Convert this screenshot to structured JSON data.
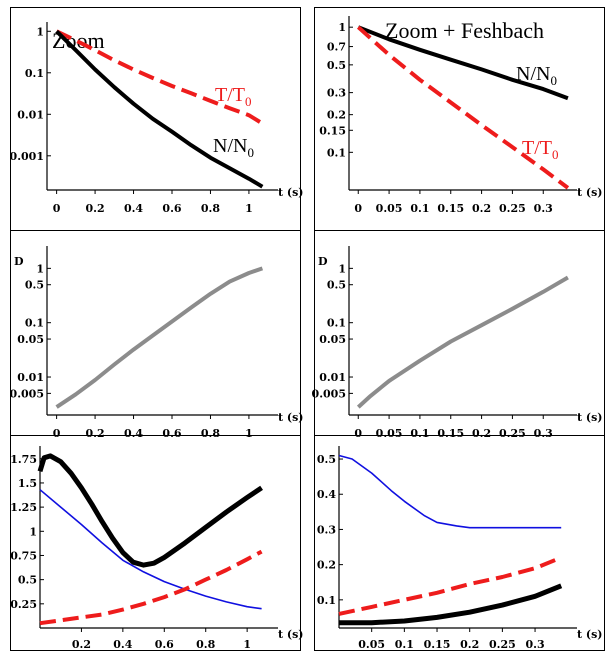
{
  "chart_data": [
    {
      "type": "line",
      "title": "Zoom",
      "log_y": true,
      "xlabel": "t (s)",
      "ylabel": "",
      "xlim": [
        -0.05,
        1.12
      ],
      "ylim": [
        0.00015,
        1.2
      ],
      "xticks": [
        "0",
        "0.2",
        "0.4",
        "0.6",
        "0.8",
        "1"
      ],
      "yticks": [
        {
          "v": 1,
          "t": "1"
        },
        {
          "v": 0.1,
          "t": "0.1"
        },
        {
          "v": 0.01,
          "t": "0.01"
        },
        {
          "v": 0.001,
          "t": "0.001"
        }
      ],
      "series": [
        {
          "name": "T/T0",
          "name_main": "T/T",
          "name_sub": "0",
          "color": "#ee1c1c",
          "style": "dashed",
          "width": 4,
          "x": [
            0,
            0.1,
            0.2,
            0.3,
            0.4,
            0.5,
            0.6,
            0.7,
            0.8,
            0.9,
            1.0,
            1.07
          ],
          "y": [
            1,
            0.6,
            0.35,
            0.2,
            0.12,
            0.075,
            0.048,
            0.032,
            0.021,
            0.014,
            0.0095,
            0.006
          ]
        },
        {
          "name": "N/N0",
          "name_main": "N/N",
          "name_sub": "0",
          "color": "#000000",
          "style": "solid",
          "width": 4,
          "x": [
            0,
            0.1,
            0.2,
            0.3,
            0.4,
            0.5,
            0.6,
            0.7,
            0.8,
            0.9,
            1.0,
            1.07
          ],
          "y": [
            1,
            0.35,
            0.12,
            0.045,
            0.018,
            0.0078,
            0.0038,
            0.0018,
            0.0009,
            0.0005,
            0.00028,
            0.00018
          ]
        }
      ]
    },
    {
      "type": "line",
      "title": "Zoom + Feshbach",
      "log_y": true,
      "xlabel": "t (s)",
      "ylabel": "",
      "xlim": [
        -0.015,
        0.345
      ],
      "ylim": [
        0.05,
        1.1
      ],
      "xticks": [
        "0",
        "0.05",
        "0.1",
        "0.15",
        "0.2",
        "0.25",
        "0.3"
      ],
      "yticks": [
        {
          "v": 1,
          "t": "1"
        },
        {
          "v": 0.7,
          "t": "0.7"
        },
        {
          "v": 0.5,
          "t": "0.5"
        },
        {
          "v": 0.3,
          "t": "0.3"
        },
        {
          "v": 0.2,
          "t": "0.2"
        },
        {
          "v": 0.15,
          "t": "0.15"
        },
        {
          "v": 0.1,
          "t": "0.1"
        }
      ],
      "series": [
        {
          "name": "N/N0",
          "name_main": "N/N",
          "name_sub": "0",
          "color": "#000000",
          "style": "solid",
          "width": 4,
          "x": [
            0,
            0.05,
            0.1,
            0.15,
            0.2,
            0.25,
            0.3,
            0.34
          ],
          "y": [
            1,
            0.8,
            0.66,
            0.55,
            0.46,
            0.38,
            0.32,
            0.27
          ]
        },
        {
          "name": "T/T0",
          "name_main": "T/T",
          "name_sub": "0",
          "color": "#ee1c1c",
          "style": "dashed",
          "width": 4,
          "x": [
            0,
            0.05,
            0.1,
            0.15,
            0.2,
            0.25,
            0.3,
            0.34
          ],
          "y": [
            1,
            0.6,
            0.38,
            0.25,
            0.165,
            0.11,
            0.073,
            0.052
          ]
        }
      ]
    },
    {
      "type": "line",
      "title": "",
      "log_y": true,
      "xlabel": "t (s)",
      "ylabel": "D",
      "xlim": [
        -0.05,
        1.12
      ],
      "ylim": [
        0.002,
        2.0
      ],
      "xticks": [
        "0",
        "0.2",
        "0.4",
        "0.6",
        "0.8",
        "1"
      ],
      "yticks": [
        {
          "v": 1,
          "t": "1"
        },
        {
          "v": 0.5,
          "t": "0.5"
        },
        {
          "v": 0.1,
          "t": "0.1"
        },
        {
          "v": 0.05,
          "t": "0.05"
        },
        {
          "v": 0.01,
          "t": "0.01"
        },
        {
          "v": 0.005,
          "t": "0.005"
        }
      ],
      "series": [
        {
          "name": "",
          "color": "#8c8c8c",
          "style": "solid",
          "width": 4,
          "x": [
            0,
            0.1,
            0.2,
            0.3,
            0.4,
            0.5,
            0.6,
            0.7,
            0.8,
            0.9,
            1.0,
            1.07
          ],
          "y": [
            0.0028,
            0.0048,
            0.0088,
            0.017,
            0.032,
            0.058,
            0.105,
            0.19,
            0.34,
            0.57,
            0.82,
            1.0
          ]
        }
      ]
    },
    {
      "type": "line",
      "title": "",
      "log_y": true,
      "xlabel": "t (s)",
      "ylabel": "D",
      "xlim": [
        -0.015,
        0.345
      ],
      "ylim": [
        0.002,
        2.0
      ],
      "xticks": [
        "0",
        "0.05",
        "0.1",
        "0.15",
        "0.2",
        "0.25",
        "0.3"
      ],
      "yticks": [
        {
          "v": 1,
          "t": "1"
        },
        {
          "v": 0.5,
          "t": "0.5"
        },
        {
          "v": 0.1,
          "t": "0.1"
        },
        {
          "v": 0.05,
          "t": "0.05"
        },
        {
          "v": 0.01,
          "t": "0.01"
        },
        {
          "v": 0.005,
          "t": "0.005"
        }
      ],
      "series": [
        {
          "name": "",
          "color": "#8c8c8c",
          "style": "solid",
          "width": 4,
          "x": [
            0,
            0.02,
            0.05,
            0.1,
            0.15,
            0.2,
            0.25,
            0.3,
            0.34
          ],
          "y": [
            0.0028,
            0.0045,
            0.0085,
            0.02,
            0.045,
            0.09,
            0.18,
            0.37,
            0.68
          ]
        }
      ]
    },
    {
      "type": "line",
      "title": "",
      "log_y": false,
      "xlabel": "t (s)",
      "ylabel": "",
      "xlim": [
        0,
        1.12
      ],
      "ylim": [
        0.0,
        1.82
      ],
      "xticks": [
        "0.2",
        "0.4",
        "0.6",
        "0.8",
        "1"
      ],
      "yticks": [
        {
          "v": 1.75,
          "t": "1.75"
        },
        {
          "v": 1.5,
          "t": "1.5"
        },
        {
          "v": 1.25,
          "t": "1.25"
        },
        {
          "v": 1,
          "t": "1"
        },
        {
          "v": 0.75,
          "t": "0.75"
        },
        {
          "v": 0.5,
          "t": "0.5"
        },
        {
          "v": 0.25,
          "t": "0.25"
        }
      ],
      "series": [
        {
          "name": "",
          "color": "#000000",
          "style": "solid",
          "width": 5,
          "x": [
            0,
            0.02,
            0.05,
            0.1,
            0.15,
            0.2,
            0.25,
            0.3,
            0.35,
            0.4,
            0.45,
            0.5,
            0.55,
            0.6,
            0.7,
            0.8,
            0.9,
            1.0,
            1.07
          ],
          "y": [
            1.62,
            1.76,
            1.78,
            1.72,
            1.6,
            1.45,
            1.28,
            1.1,
            0.93,
            0.78,
            0.68,
            0.65,
            0.67,
            0.73,
            0.88,
            1.04,
            1.2,
            1.35,
            1.45
          ]
        },
        {
          "name": "",
          "color": "#1010e0",
          "style": "solid",
          "width": 1.6,
          "x": [
            0,
            0.1,
            0.2,
            0.3,
            0.4,
            0.5,
            0.6,
            0.7,
            0.8,
            0.9,
            1.0,
            1.07
          ],
          "y": [
            1.43,
            1.25,
            1.07,
            0.88,
            0.7,
            0.58,
            0.48,
            0.4,
            0.33,
            0.27,
            0.22,
            0.2
          ]
        },
        {
          "name": "",
          "color": "#ee1c1c",
          "style": "dashed",
          "width": 4,
          "x": [
            0,
            0.1,
            0.2,
            0.3,
            0.4,
            0.5,
            0.6,
            0.7,
            0.8,
            0.9,
            1.0,
            1.07
          ],
          "y": [
            0.05,
            0.08,
            0.11,
            0.14,
            0.19,
            0.25,
            0.32,
            0.4,
            0.5,
            0.6,
            0.71,
            0.79
          ]
        }
      ]
    },
    {
      "type": "line",
      "title": "",
      "log_y": false,
      "xlabel": "t (s)",
      "ylabel": "",
      "xlim": [
        0,
        0.355
      ],
      "ylim": [
        0.02,
        0.52
      ],
      "xticks": [
        "0.05",
        "0.1",
        "0.15",
        "0.2",
        "0.25",
        "0.3"
      ],
      "yticks": [
        {
          "v": 0.5,
          "t": "0.5"
        },
        {
          "v": 0.4,
          "t": "0.4"
        },
        {
          "v": 0.3,
          "t": "0.3"
        },
        {
          "v": 0.2,
          "t": "0.2"
        },
        {
          "v": 0.1,
          "t": "0.1"
        }
      ],
      "series": [
        {
          "name": "",
          "color": "#1010e0",
          "style": "solid",
          "width": 1.6,
          "x": [
            0,
            0.02,
            0.05,
            0.08,
            0.1,
            0.13,
            0.15,
            0.18,
            0.2,
            0.25,
            0.3,
            0.34
          ],
          "y": [
            0.51,
            0.5,
            0.46,
            0.41,
            0.38,
            0.34,
            0.32,
            0.31,
            0.305,
            0.305,
            0.305,
            0.305
          ]
        },
        {
          "name": "",
          "color": "#ee1c1c",
          "style": "dashed",
          "width": 4,
          "x": [
            0,
            0.05,
            0.1,
            0.15,
            0.2,
            0.25,
            0.3,
            0.34
          ],
          "y": [
            0.06,
            0.08,
            0.1,
            0.12,
            0.145,
            0.165,
            0.19,
            0.22
          ]
        },
        {
          "name": "",
          "color": "#000000",
          "style": "solid",
          "width": 5,
          "x": [
            0,
            0.05,
            0.1,
            0.15,
            0.2,
            0.25,
            0.3,
            0.34
          ],
          "y": [
            0.035,
            0.035,
            0.04,
            0.05,
            0.065,
            0.085,
            0.11,
            0.14
          ]
        }
      ]
    }
  ]
}
